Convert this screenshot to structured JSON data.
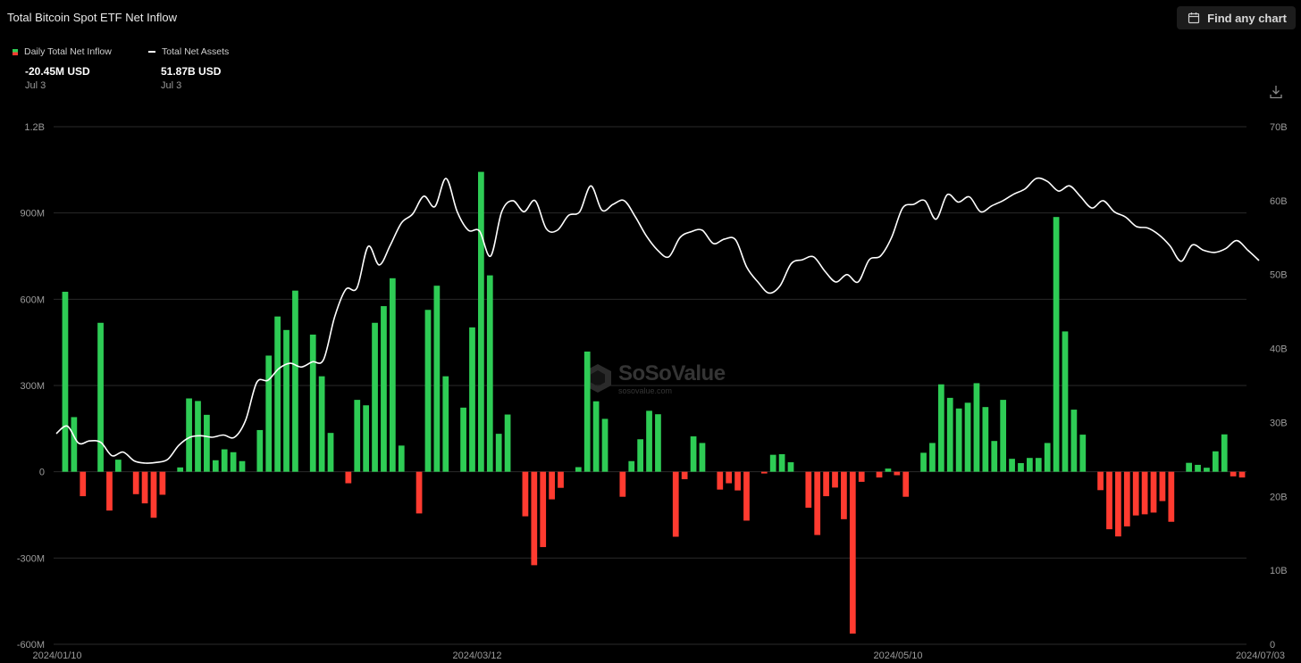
{
  "title": "Total Bitcoin Spot ETF Net Inflow",
  "toolbar": {
    "find_label": "Find any chart",
    "find_icon": "calendar-icon",
    "download_icon": "download-icon"
  },
  "legend": [
    {
      "label": "Daily Total Net Inflow",
      "value": "-20.45M USD",
      "date": "Jul 3"
    },
    {
      "label": "Total Net Assets",
      "value": "51.87B USD",
      "date": "Jul 3"
    }
  ],
  "watermark": {
    "name": "SoSoValue",
    "url": "sosovalue.com"
  },
  "colors": {
    "inflow": "#2ecc55",
    "outflow": "#ff3b30",
    "assets_line": "#ffffff",
    "grid": "#2a2a2a",
    "background": "#000000"
  },
  "chart_data": {
    "type": "bar",
    "title": "Total Bitcoin Spot ETF Net Inflow",
    "grid": true,
    "legend_placement": "top-left",
    "x_ticks": [
      "2024/01/10",
      "2024/03/12",
      "2024/05/10",
      "2024/07/03"
    ],
    "y_left": {
      "unit": "USD",
      "ylim": [
        -600000000,
        1200000000
      ],
      "ticks": [
        "-600M",
        "-300M",
        "0",
        "300M",
        "600M",
        "900M",
        "1.2B"
      ]
    },
    "y_right": {
      "unit": "USD",
      "ylim": [
        0,
        70000000000
      ],
      "ticks": [
        "0",
        "10B",
        "20B",
        "30B",
        "40B",
        "50B",
        "60B",
        "70B"
      ]
    },
    "series": [
      {
        "name": "Daily Total Net Inflow",
        "type": "bar",
        "axis": "left",
        "unit": "M USD",
        "values": [
          626,
          190,
          -85,
          0,
          518,
          -135,
          42,
          0,
          -78,
          -110,
          -160,
          -80,
          0,
          15,
          255,
          246,
          198,
          40,
          78,
          68,
          37,
          0,
          145,
          404,
          540,
          493,
          630,
          0,
          477,
          332,
          135,
          0,
          -40,
          250,
          231,
          518,
          576,
          673,
          91,
          0,
          -145,
          563,
          647,
          332,
          0,
          223,
          502,
          1043,
          683,
          132,
          199,
          0,
          -155,
          -325,
          -262,
          -96,
          -56,
          0,
          16,
          418,
          245,
          184,
          0,
          -87,
          37,
          113,
          212,
          200,
          0,
          -226,
          -26,
          123,
          100,
          0,
          -62,
          -40,
          -65,
          -170,
          0,
          -6,
          59,
          61,
          33,
          0,
          -125,
          -220,
          -85,
          -55,
          -165,
          -563,
          -35,
          0,
          -20,
          11,
          -12,
          -87,
          0,
          66,
          100,
          304,
          257,
          220,
          240,
          308,
          225,
          107,
          250,
          45,
          30,
          48,
          48,
          100,
          886,
          488,
          216,
          129,
          0,
          -64,
          -200,
          -225,
          -190,
          -152,
          -148,
          -142,
          -102,
          -174,
          0,
          31,
          24,
          14,
          71,
          130,
          -16,
          -20
        ]
      },
      {
        "name": "Total Net Assets",
        "type": "line",
        "axis": "right",
        "unit": "B USD",
        "values": [
          28.5,
          29.5,
          27.2,
          27.5,
          27.3,
          25.5,
          26.0,
          24.8,
          24.5,
          24.6,
          25.0,
          26.9,
          28.0,
          28.2,
          28.0,
          28.3,
          28.0,
          30.3,
          35.4,
          35.7,
          37.3,
          38.0,
          37.5,
          38.2,
          38.5,
          44.3,
          48.0,
          48.2,
          53.8,
          51.3,
          54.0,
          57.0,
          58.2,
          60.6,
          59.2,
          63.0,
          58.5,
          56.0,
          55.9,
          52.5,
          58.5,
          60.0,
          58.5,
          60.0,
          56.2,
          56.0,
          58.0,
          58.5,
          62.0,
          58.7,
          59.5,
          60.0,
          57.8,
          55.2,
          53.3,
          52.4,
          55.0,
          55.8,
          56.0,
          54.2,
          54.8,
          54.7,
          51.0,
          49.0,
          47.5,
          48.5,
          51.5,
          52.0,
          52.4,
          50.5,
          49.0,
          50.0,
          49.0,
          52.0,
          52.5,
          55.0,
          59.0,
          59.5,
          60.0,
          57.5,
          60.8,
          59.8,
          60.5,
          58.5,
          59.3,
          60.0,
          60.9,
          61.6,
          63.0,
          62.6,
          61.3,
          62.0,
          60.5,
          59.0,
          60.0,
          58.5,
          57.8,
          56.5,
          56.3,
          55.4,
          53.9,
          51.8,
          54.0,
          53.3,
          53.0,
          53.5,
          54.6,
          53.3,
          51.9
        ]
      }
    ]
  }
}
